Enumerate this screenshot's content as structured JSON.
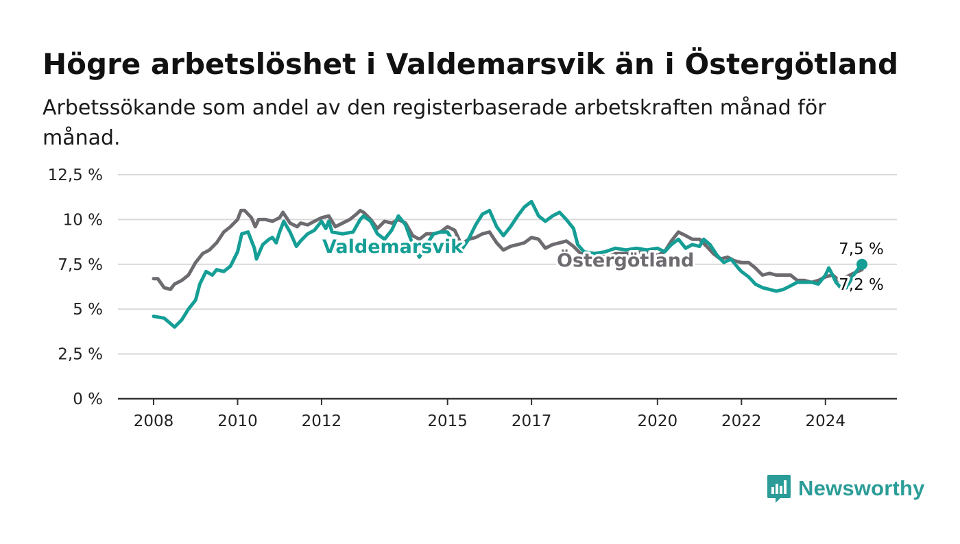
{
  "chart_data": {
    "type": "line",
    "title": "Högre arbetslöshet i Valdemarsvik än i Östergötland",
    "subtitle": "Arbetssökande som andel av den registerbaserade arbetskraften månad för månad.",
    "xlabel": "",
    "ylabel": "",
    "x_range": [
      2008.0,
      2025.0
    ],
    "ylim": [
      0,
      12.5
    ],
    "y_ticks": [
      0,
      2.5,
      5,
      7.5,
      10,
      12.5
    ],
    "y_tick_labels": [
      "0 %",
      "2,5 %",
      "5 %",
      "7,5 %",
      "10 %",
      "12,5 %"
    ],
    "x_ticks": [
      2008,
      2010,
      2012,
      2015,
      2017,
      2020,
      2022,
      2024
    ],
    "x_tick_labels": [
      "2008",
      "2010",
      "2012",
      "2015",
      "2017",
      "2020",
      "2022",
      "2024"
    ],
    "grid": true,
    "legend": "inline labels",
    "series": [
      {
        "name": "Valdemarsvik",
        "color": "#159e95",
        "end_label": "7,5 %",
        "points": [
          [
            2008.0,
            4.6
          ],
          [
            2008.25,
            4.5
          ],
          [
            2008.4,
            4.2
          ],
          [
            2008.5,
            4.0
          ],
          [
            2008.67,
            4.4
          ],
          [
            2008.83,
            5.0
          ],
          [
            2009.0,
            5.5
          ],
          [
            2009.1,
            6.4
          ],
          [
            2009.25,
            7.1
          ],
          [
            2009.4,
            6.9
          ],
          [
            2009.5,
            7.2
          ],
          [
            2009.67,
            7.1
          ],
          [
            2009.83,
            7.4
          ],
          [
            2010.0,
            8.2
          ],
          [
            2010.1,
            9.2
          ],
          [
            2010.25,
            9.3
          ],
          [
            2010.4,
            8.4
          ],
          [
            2010.45,
            7.8
          ],
          [
            2010.6,
            8.6
          ],
          [
            2010.75,
            8.9
          ],
          [
            2010.83,
            9.0
          ],
          [
            2010.92,
            8.7
          ],
          [
            2011.0,
            9.3
          ],
          [
            2011.1,
            9.9
          ],
          [
            2011.25,
            9.3
          ],
          [
            2011.4,
            8.5
          ],
          [
            2011.5,
            8.8
          ],
          [
            2011.67,
            9.2
          ],
          [
            2011.83,
            9.4
          ],
          [
            2012.0,
            9.9
          ],
          [
            2012.1,
            9.5
          ],
          [
            2012.17,
            9.9
          ],
          [
            2012.25,
            9.3
          ],
          [
            2012.5,
            9.2
          ],
          [
            2012.75,
            9.3
          ],
          [
            2012.92,
            10.0
          ],
          [
            2013.0,
            10.2
          ],
          [
            2013.17,
            9.9
          ],
          [
            2013.33,
            9.2
          ],
          [
            2013.5,
            8.9
          ],
          [
            2013.67,
            9.4
          ],
          [
            2013.83,
            10.2
          ],
          [
            2014.0,
            9.7
          ],
          [
            2014.17,
            8.6
          ],
          [
            2014.33,
            7.9
          ],
          [
            2014.5,
            8.6
          ],
          [
            2014.67,
            9.2
          ],
          [
            2014.83,
            9.3
          ],
          [
            2015.0,
            9.3
          ],
          [
            2015.17,
            8.6
          ],
          [
            2015.33,
            8.3
          ],
          [
            2015.5,
            8.9
          ],
          [
            2015.67,
            9.7
          ],
          [
            2015.83,
            10.3
          ],
          [
            2016.0,
            10.5
          ],
          [
            2016.17,
            9.6
          ],
          [
            2016.33,
            9.1
          ],
          [
            2016.5,
            9.6
          ],
          [
            2016.67,
            10.2
          ],
          [
            2016.83,
            10.7
          ],
          [
            2017.0,
            11.0
          ],
          [
            2017.17,
            10.2
          ],
          [
            2017.33,
            9.9
          ],
          [
            2017.5,
            10.2
          ],
          [
            2017.67,
            10.4
          ],
          [
            2017.83,
            10.0
          ],
          [
            2018.0,
            9.5
          ],
          [
            2018.1,
            8.6
          ],
          [
            2018.25,
            8.2
          ],
          [
            2018.5,
            8.1
          ],
          [
            2018.75,
            8.2
          ],
          [
            2019.0,
            8.4
          ],
          [
            2019.25,
            8.3
          ],
          [
            2019.5,
            8.4
          ],
          [
            2019.75,
            8.3
          ],
          [
            2020.0,
            8.4
          ],
          [
            2020.17,
            8.2
          ],
          [
            2020.33,
            8.6
          ],
          [
            2020.5,
            8.9
          ],
          [
            2020.67,
            8.4
          ],
          [
            2020.83,
            8.6
          ],
          [
            2021.0,
            8.5
          ],
          [
            2021.1,
            8.9
          ],
          [
            2021.25,
            8.6
          ],
          [
            2021.42,
            8.0
          ],
          [
            2021.58,
            7.6
          ],
          [
            2021.75,
            7.8
          ],
          [
            2021.92,
            7.3
          ],
          [
            2022.0,
            7.1
          ],
          [
            2022.17,
            6.8
          ],
          [
            2022.33,
            6.4
          ],
          [
            2022.5,
            6.2
          ],
          [
            2022.67,
            6.1
          ],
          [
            2022.83,
            6.0
          ],
          [
            2023.0,
            6.1
          ],
          [
            2023.17,
            6.3
          ],
          [
            2023.33,
            6.5
          ],
          [
            2023.5,
            6.5
          ],
          [
            2023.67,
            6.5
          ],
          [
            2023.83,
            6.4
          ],
          [
            2024.0,
            6.9
          ],
          [
            2024.08,
            7.3
          ],
          [
            2024.17,
            6.9
          ],
          [
            2024.25,
            6.5
          ],
          [
            2024.4,
            6.1
          ],
          [
            2024.5,
            6.2
          ],
          [
            2024.67,
            6.9
          ],
          [
            2024.83,
            7.4
          ],
          [
            2024.87,
            7.5
          ]
        ]
      },
      {
        "name": "Östergötland",
        "color": "#6e6b70",
        "end_label": "7,2 %",
        "points": [
          [
            2008.0,
            6.7
          ],
          [
            2008.1,
            6.7
          ],
          [
            2008.25,
            6.2
          ],
          [
            2008.4,
            6.1
          ],
          [
            2008.5,
            6.4
          ],
          [
            2008.67,
            6.6
          ],
          [
            2008.83,
            6.9
          ],
          [
            2009.0,
            7.6
          ],
          [
            2009.17,
            8.1
          ],
          [
            2009.33,
            8.3
          ],
          [
            2009.5,
            8.7
          ],
          [
            2009.67,
            9.3
          ],
          [
            2009.83,
            9.6
          ],
          [
            2010.0,
            10.0
          ],
          [
            2010.08,
            10.5
          ],
          [
            2010.17,
            10.5
          ],
          [
            2010.33,
            10.1
          ],
          [
            2010.42,
            9.6
          ],
          [
            2010.5,
            10.0
          ],
          [
            2010.67,
            10.0
          ],
          [
            2010.83,
            9.9
          ],
          [
            2011.0,
            10.1
          ],
          [
            2011.08,
            10.4
          ],
          [
            2011.25,
            9.8
          ],
          [
            2011.42,
            9.6
          ],
          [
            2011.5,
            9.8
          ],
          [
            2011.67,
            9.7
          ],
          [
            2011.83,
            9.9
          ],
          [
            2012.0,
            10.1
          ],
          [
            2012.17,
            10.2
          ],
          [
            2012.33,
            9.6
          ],
          [
            2012.5,
            9.8
          ],
          [
            2012.67,
            10.0
          ],
          [
            2012.83,
            10.3
          ],
          [
            2012.92,
            10.5
          ],
          [
            2013.0,
            10.4
          ],
          [
            2013.17,
            10.0
          ],
          [
            2013.33,
            9.5
          ],
          [
            2013.5,
            9.9
          ],
          [
            2013.67,
            9.8
          ],
          [
            2013.83,
            10.0
          ],
          [
            2014.0,
            9.8
          ],
          [
            2014.17,
            9.1
          ],
          [
            2014.33,
            8.9
          ],
          [
            2014.5,
            9.2
          ],
          [
            2014.67,
            9.2
          ],
          [
            2014.83,
            9.3
          ],
          [
            2015.0,
            9.6
          ],
          [
            2015.17,
            9.4
          ],
          [
            2015.33,
            8.6
          ],
          [
            2015.5,
            8.9
          ],
          [
            2015.67,
            9.0
          ],
          [
            2015.83,
            9.2
          ],
          [
            2016.0,
            9.3
          ],
          [
            2016.17,
            8.7
          ],
          [
            2016.33,
            8.3
          ],
          [
            2016.5,
            8.5
          ],
          [
            2016.67,
            8.6
          ],
          [
            2016.83,
            8.7
          ],
          [
            2017.0,
            9.0
          ],
          [
            2017.17,
            8.9
          ],
          [
            2017.33,
            8.4
          ],
          [
            2017.5,
            8.6
          ],
          [
            2017.67,
            8.7
          ],
          [
            2017.83,
            8.8
          ],
          [
            2018.0,
            8.5
          ],
          [
            2018.17,
            8.1
          ],
          [
            2018.5,
            8.0
          ],
          [
            2018.83,
            7.9
          ],
          [
            2019.0,
            8.1
          ],
          [
            2019.33,
            8.1
          ],
          [
            2019.67,
            8.2
          ],
          [
            2020.0,
            8.0
          ],
          [
            2020.17,
            8.2
          ],
          [
            2020.33,
            8.8
          ],
          [
            2020.5,
            9.3
          ],
          [
            2020.67,
            9.1
          ],
          [
            2020.83,
            8.9
          ],
          [
            2021.0,
            8.9
          ],
          [
            2021.17,
            8.5
          ],
          [
            2021.33,
            8.1
          ],
          [
            2021.5,
            7.8
          ],
          [
            2021.67,
            7.9
          ],
          [
            2021.83,
            7.7
          ],
          [
            2022.0,
            7.6
          ],
          [
            2022.17,
            7.6
          ],
          [
            2022.33,
            7.3
          ],
          [
            2022.5,
            6.9
          ],
          [
            2022.67,
            7.0
          ],
          [
            2022.83,
            6.9
          ],
          [
            2023.0,
            6.9
          ],
          [
            2023.17,
            6.9
          ],
          [
            2023.33,
            6.6
          ],
          [
            2023.5,
            6.6
          ],
          [
            2023.67,
            6.5
          ],
          [
            2023.83,
            6.6
          ],
          [
            2024.0,
            6.8
          ],
          [
            2024.17,
            6.9
          ],
          [
            2024.33,
            6.6
          ],
          [
            2024.5,
            6.8
          ],
          [
            2024.67,
            7.0
          ],
          [
            2024.87,
            7.2
          ]
        ]
      }
    ]
  },
  "brand": {
    "name": "Newsworthy"
  }
}
